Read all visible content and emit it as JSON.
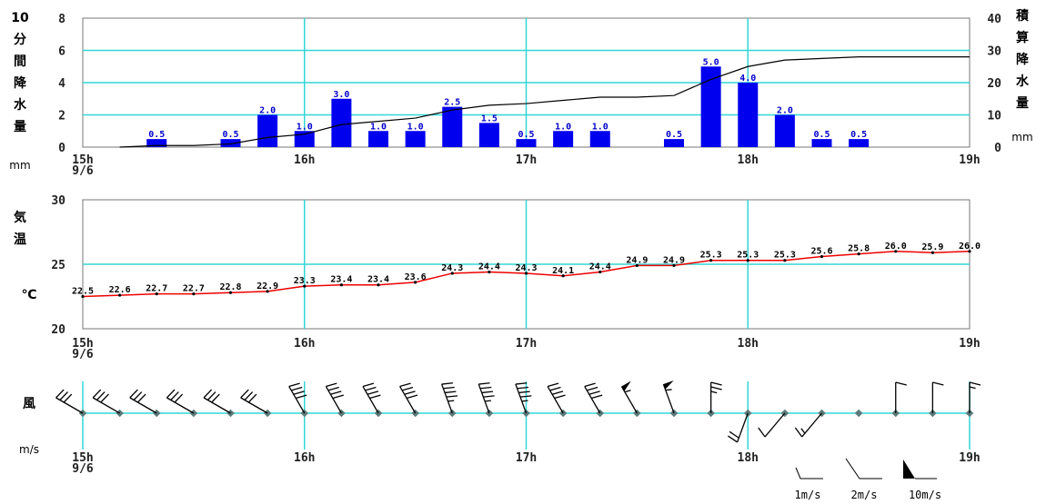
{
  "time_labels": [
    "15h",
    "16h",
    "17h",
    "18h",
    "19h"
  ],
  "date_label": "9/6",
  "colors": {
    "grid": "#33d6d6",
    "bars": "#0000ee",
    "bar_labels": "#0000cc",
    "cumulative_line": "#000000",
    "temp_line": "#ee0000",
    "wind": "#000000"
  },
  "precip_panel": {
    "left_label_chars": [
      "10",
      "分",
      "間",
      "降",
      "水",
      "量"
    ],
    "left_unit": "mm",
    "right_label_chars": [
      "積",
      "算",
      "降",
      "水",
      "量"
    ],
    "right_unit": "mm",
    "left_ticks": [
      "0",
      "2",
      "4",
      "6",
      "8"
    ],
    "right_ticks": [
      "0",
      "10",
      "20",
      "30",
      "40"
    ]
  },
  "temp_panel": {
    "label_chars": [
      "気",
      "温"
    ],
    "unit": "℃",
    "ticks": [
      "20",
      "25",
      "30"
    ]
  },
  "wind_panel": {
    "label": "風",
    "unit": "m/s",
    "legend": [
      "1m/s",
      "2m/s",
      "10m/s"
    ]
  },
  "chart_data": [
    {
      "type": "bar",
      "name": "10-minute precipitation",
      "xlabel": "",
      "ylabel": "10分間降水量 (mm)",
      "ylim": [
        0,
        8
      ],
      "x": [
        "15:20",
        "15:30",
        "15:40",
        "15:50",
        "16:00",
        "16:10",
        "16:20",
        "16:30",
        "16:40",
        "16:50",
        "17:00",
        "17:10",
        "17:20",
        "17:30",
        "17:40",
        "17:50",
        "18:00",
        "18:10",
        "18:20",
        "18:30",
        "18:40"
      ],
      "values": [
        0.5,
        0,
        0.5,
        2.0,
        1.0,
        3.0,
        1.0,
        1.0,
        2.5,
        1.5,
        0.5,
        1.0,
        1.0,
        0,
        0.5,
        5.0,
        4.0,
        2.0,
        0.5,
        0.5,
        0
      ],
      "labels": [
        "0.5",
        "",
        "0.5",
        "2.0",
        "1.0",
        "3.0",
        "1.0",
        "1.0",
        "2.5",
        "1.5",
        "0.5",
        "1.0",
        "1.0",
        "",
        "0.5",
        "5.0",
        "4.0",
        "2.0",
        "0.5",
        "0.5",
        ""
      ]
    },
    {
      "type": "line",
      "name": "cumulative precipitation",
      "ylabel": "積算降水量 (mm)",
      "ylim": [
        0,
        40
      ],
      "x": [
        "15:10",
        "15:20",
        "15:30",
        "15:40",
        "15:50",
        "16:00",
        "16:10",
        "16:20",
        "16:30",
        "16:40",
        "16:50",
        "17:00",
        "17:10",
        "17:20",
        "17:30",
        "17:40",
        "17:50",
        "18:00",
        "18:10",
        "18:20",
        "18:30",
        "18:40",
        "18:50",
        "19:00"
      ],
      "values": [
        0,
        0.5,
        0.5,
        1.0,
        3.0,
        4.0,
        7.0,
        8.0,
        9.0,
        11.5,
        13.0,
        13.5,
        14.5,
        15.5,
        15.5,
        16.0,
        21.0,
        25.0,
        27.0,
        27.5,
        28.0,
        28.0,
        28.0,
        28.0
      ]
    },
    {
      "type": "line",
      "name": "temperature",
      "ylabel": "気温 (℃)",
      "ylim": [
        20,
        30
      ],
      "x": [
        "15:00",
        "15:10",
        "15:20",
        "15:30",
        "15:40",
        "15:50",
        "16:00",
        "16:10",
        "16:20",
        "16:30",
        "16:40",
        "16:50",
        "17:00",
        "17:10",
        "17:20",
        "17:30",
        "17:40",
        "17:50",
        "18:00",
        "18:10",
        "18:20",
        "18:30",
        "18:40",
        "18:50",
        "19:00"
      ],
      "values": [
        22.5,
        22.6,
        22.7,
        22.7,
        22.8,
        22.9,
        23.3,
        23.4,
        23.4,
        23.6,
        24.3,
        24.4,
        24.3,
        24.1,
        24.4,
        24.9,
        24.9,
        25.3,
        25.3,
        25.3,
        25.6,
        25.8,
        26.0,
        25.9,
        26.0
      ],
      "labels": [
        "22.5",
        "22.6",
        "22.7",
        "22.7",
        "22.8",
        "22.9",
        "23.3",
        "23.4",
        "23.4",
        "23.6",
        "24.3",
        "24.4",
        "24.3",
        "24.1",
        "24.4",
        "24.9",
        "24.9",
        "25.3",
        "25.3",
        "25.3",
        "25.6",
        "25.8",
        "26.0",
        "25.9",
        "26.0"
      ]
    },
    {
      "type": "scatter",
      "name": "wind barbs",
      "x": [
        "15:00",
        "15:10",
        "15:20",
        "15:30",
        "15:40",
        "15:50",
        "16:00",
        "16:10",
        "16:20",
        "16:30",
        "16:40",
        "16:50",
        "17:00",
        "17:10",
        "17:20",
        "17:30",
        "17:40",
        "17:50",
        "18:00",
        "18:10",
        "18:20",
        "18:30",
        "18:40",
        "18:50",
        "19:00"
      ],
      "direction_deg": [
        300,
        300,
        300,
        300,
        300,
        300,
        330,
        330,
        330,
        330,
        340,
        340,
        340,
        330,
        330,
        330,
        340,
        360,
        200,
        220,
        220,
        40,
        360,
        360,
        360
      ],
      "speed_ms": [
        6,
        6,
        6,
        6,
        6,
        6,
        8,
        8,
        8,
        8,
        9,
        9,
        9,
        8,
        8,
        11,
        11,
        5,
        4,
        2,
        3,
        0,
        2,
        2,
        3
      ]
    }
  ]
}
